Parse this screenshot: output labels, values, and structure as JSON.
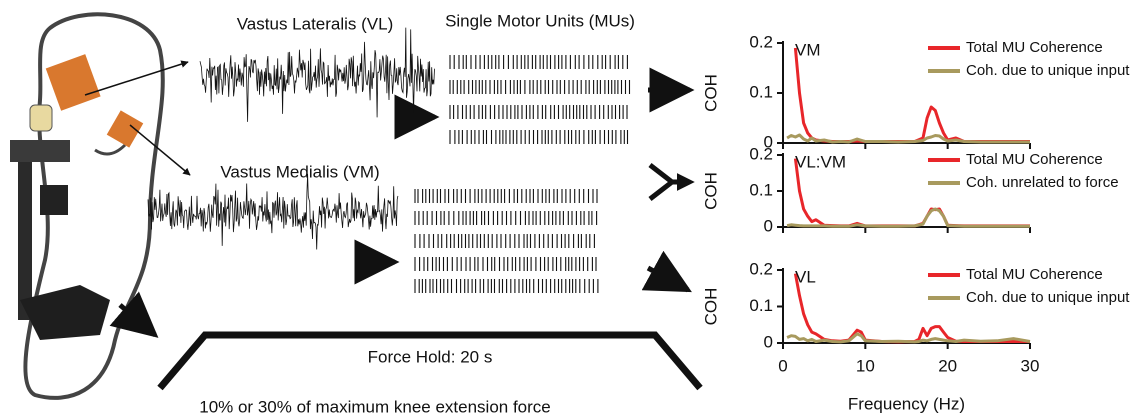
{
  "figure": {
    "vl_label": "Vastus Lateralis (VL)",
    "mu_label": "Single Motor Units (MUs)",
    "vm_label": "Vastus Medialis (VM)",
    "force_hold": "Force Hold: 20 s",
    "force_level": "10% or 30% of maximum knee extension force"
  },
  "chart_data": [
    {
      "type": "line",
      "annotation": "VM",
      "ylabel": "COH",
      "ylim": [
        0,
        0.2
      ],
      "yticks": [
        0,
        0.1,
        0.2
      ],
      "xlim": [
        0,
        30
      ],
      "xticks": [
        0,
        10,
        20,
        30
      ],
      "show_xtick_labels": false,
      "legend": "upper right",
      "x": [
        0.5,
        1,
        1.5,
        2,
        2.5,
        3,
        3.5,
        4,
        5,
        6,
        7,
        8,
        9,
        10,
        12,
        14,
        16,
        17,
        17.5,
        18,
        18.5,
        19,
        19.5,
        20,
        21,
        22,
        24,
        26,
        28,
        30
      ],
      "series": [
        {
          "name": "Total MU Coherence",
          "color": "#e8262a",
          "values": [
            null,
            null,
            0.19,
            0.1,
            0.04,
            0.02,
            0.01,
            0.006,
            0.004,
            0.003,
            0.003,
            0.003,
            0.004,
            0.003,
            0.003,
            0.003,
            0.003,
            0.01,
            0.05,
            0.072,
            0.065,
            0.04,
            0.02,
            0.006,
            0.01,
            0.003,
            0.003,
            0.003,
            0.003,
            0.003
          ]
        },
        {
          "name": "Coh. due to unique input",
          "color": "#a89a5e",
          "values": [
            0.01,
            0.015,
            0.012,
            0.016,
            0.008,
            0.004,
            0.01,
            0.004,
            0.006,
            0.002,
            0.003,
            0.002,
            0.008,
            0.003,
            0.003,
            0.002,
            0.003,
            0.005,
            0.01,
            0.012,
            0.015,
            0.014,
            0.008,
            0.004,
            0.006,
            0.003,
            0.002,
            0.002,
            0.002,
            0.002
          ]
        }
      ]
    },
    {
      "type": "line",
      "annotation": "VL:VM",
      "ylabel": "COH",
      "ylim": [
        0,
        0.2
      ],
      "yticks": [
        0,
        0.1,
        0.2
      ],
      "xlim": [
        0,
        30
      ],
      "xticks": [
        0,
        10,
        20,
        30
      ],
      "show_xtick_labels": false,
      "legend": "upper right",
      "x": [
        0.5,
        1,
        1.5,
        2,
        2.5,
        3,
        3.5,
        4,
        5,
        6,
        7,
        8,
        9,
        10,
        12,
        14,
        16,
        17,
        17.5,
        18,
        18.5,
        19,
        19.5,
        20,
        21,
        22,
        24,
        26,
        28,
        30
      ],
      "series": [
        {
          "name": "Total MU Coherence",
          "color": "#e8262a",
          "values": [
            null,
            null,
            0.19,
            0.1,
            0.05,
            0.03,
            0.015,
            0.02,
            0.005,
            0.004,
            0.003,
            0.003,
            0.01,
            0.003,
            0.003,
            0.003,
            0.003,
            0.01,
            0.03,
            0.05,
            0.048,
            0.05,
            0.03,
            0.005,
            0.004,
            0.003,
            0.003,
            0.003,
            0.003,
            0.003
          ]
        },
        {
          "name": "Coh. unrelated to force",
          "color": "#a89a5e",
          "values": [
            0.004,
            0.006,
            0.005,
            0.004,
            0.003,
            0.003,
            0.003,
            0.003,
            0.003,
            0.002,
            0.002,
            0.002,
            0.006,
            0.003,
            0.002,
            0.002,
            0.003,
            0.008,
            0.03,
            0.045,
            0.05,
            0.045,
            0.03,
            0.004,
            0.003,
            0.002,
            0.002,
            0.002,
            0.002,
            0.002
          ]
        }
      ]
    },
    {
      "type": "line",
      "annotation": "VL",
      "ylabel": "COH",
      "ylim": [
        0,
        0.2
      ],
      "yticks": [
        0,
        0.1,
        0.2
      ],
      "xlim": [
        0,
        30
      ],
      "xticks": [
        0,
        10,
        20,
        30
      ],
      "show_xtick_labels": true,
      "xlabel": "Frequency (Hz)",
      "legend": "upper right",
      "x": [
        0.5,
        1,
        1.5,
        2,
        2.5,
        3,
        3.5,
        4,
        5,
        6,
        7,
        8,
        9,
        9.5,
        10,
        12,
        14,
        16,
        16.5,
        17,
        17.5,
        18,
        18.5,
        19,
        19.5,
        20,
        21,
        22,
        24,
        26,
        28,
        30
      ],
      "series": [
        {
          "name": "Total MU Coherence",
          "color": "#e8262a",
          "values": [
            null,
            null,
            0.19,
            0.13,
            0.08,
            0.05,
            0.03,
            0.025,
            0.01,
            0.006,
            0.005,
            0.008,
            0.035,
            0.03,
            0.008,
            0.004,
            0.003,
            0.004,
            0.01,
            0.04,
            0.02,
            0.04,
            0.045,
            0.045,
            0.03,
            0.015,
            0.005,
            0.004,
            0.004,
            0.004,
            0.004,
            0.004
          ]
        },
        {
          "name": "Coh. due to unique input",
          "color": "#a89a5e",
          "values": [
            0.015,
            0.02,
            0.018,
            0.01,
            0.012,
            0.006,
            0.01,
            0.004,
            0.008,
            0.004,
            0.003,
            0.006,
            0.025,
            0.02,
            0.006,
            0.004,
            0.005,
            0.003,
            0.004,
            0.008,
            0.006,
            0.01,
            0.012,
            0.01,
            0.008,
            0.006,
            0.004,
            0.008,
            0.005,
            0.006,
            0.012,
            0.004
          ]
        }
      ]
    }
  ]
}
